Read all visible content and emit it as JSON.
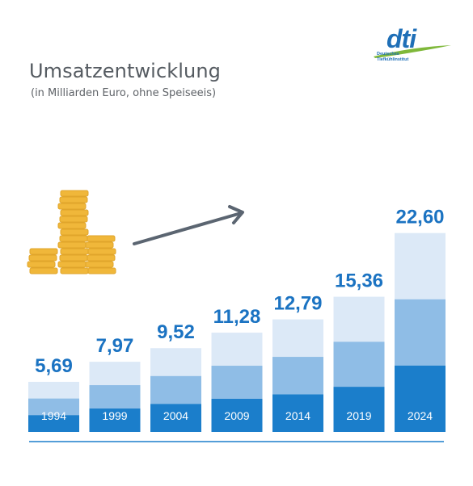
{
  "header": {
    "title": "Umsatzentwicklung",
    "subtitle": "(in Milliarden Euro, ohne Speiseeis)"
  },
  "logo": {
    "word": "dti",
    "line1": "Deutsches",
    "line2": "Tiefkühlinstitut",
    "colors": {
      "text": "#1f6fb7",
      "swoosh": "#7fb83a"
    }
  },
  "decor": {
    "coins_icon": "coin-stacks-icon",
    "arrow_icon": "trend-arrow-icon",
    "coin_color": "#f0b73a",
    "arrow_color": "#5b6571"
  },
  "chart_data": {
    "type": "bar",
    "categories": [
      "1994",
      "1999",
      "2004",
      "2009",
      "2014",
      "2019",
      "2024"
    ],
    "values": [
      5.69,
      7.97,
      9.52,
      11.28,
      12.79,
      15.36,
      22.6
    ],
    "value_labels": [
      "5,69",
      "7,97",
      "9,52",
      "11,28",
      "12,79",
      "15,36",
      "22,60"
    ],
    "ylim": [
      0,
      25
    ],
    "grid": false,
    "segment_colors": [
      "#1b7ecb",
      "#8fbde6",
      "#dce9f7"
    ],
    "label_color": "#1b73c2"
  }
}
